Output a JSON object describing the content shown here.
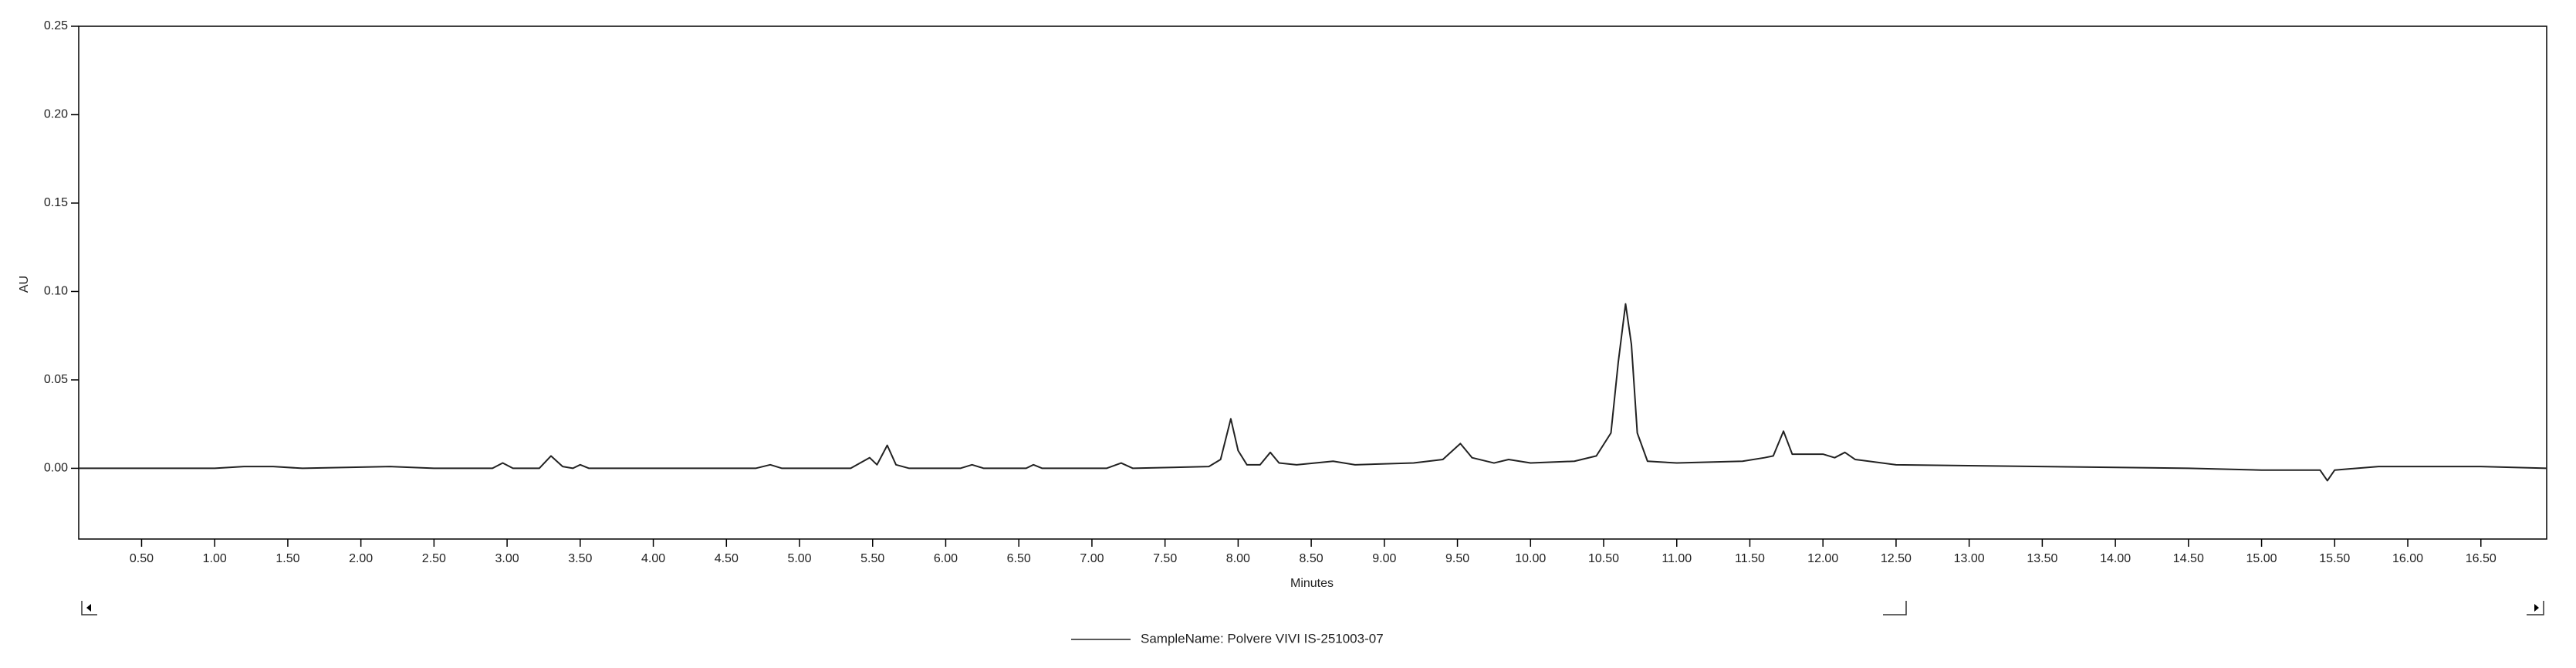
{
  "chart_data": {
    "type": "line",
    "x_label": "Minutes",
    "y_label": "AU",
    "xlim": [
      0.07,
      16.95
    ],
    "ylim": [
      -0.04,
      0.25
    ],
    "xticks": [
      {
        "value": 0.5,
        "label": "0.50"
      },
      {
        "value": 1.0,
        "label": "1.00"
      },
      {
        "value": 1.5,
        "label": "1.50"
      },
      {
        "value": 2.0,
        "label": "2.00"
      },
      {
        "value": 2.5,
        "label": "2.50"
      },
      {
        "value": 3.0,
        "label": "3.00"
      },
      {
        "value": 3.5,
        "label": "3.50"
      },
      {
        "value": 4.0,
        "label": "4.00"
      },
      {
        "value": 4.5,
        "label": "4.50"
      },
      {
        "value": 5.0,
        "label": "5.00"
      },
      {
        "value": 5.5,
        "label": "5.50"
      },
      {
        "value": 6.0,
        "label": "6.00"
      },
      {
        "value": 6.5,
        "label": "6.50"
      },
      {
        "value": 7.0,
        "label": "7.00"
      },
      {
        "value": 7.5,
        "label": "7.50"
      },
      {
        "value": 8.0,
        "label": "8.00"
      },
      {
        "value": 8.5,
        "label": "8.50"
      },
      {
        "value": 9.0,
        "label": "9.00"
      },
      {
        "value": 9.5,
        "label": "9.50"
      },
      {
        "value": 10.0,
        "label": "10.00"
      },
      {
        "value": 10.5,
        "label": "10.50"
      },
      {
        "value": 11.0,
        "label": "11.00"
      },
      {
        "value": 11.5,
        "label": "11.50"
      },
      {
        "value": 12.0,
        "label": "12.00"
      },
      {
        "value": 12.5,
        "label": "12.50"
      },
      {
        "value": 13.0,
        "label": "13.00"
      },
      {
        "value": 13.5,
        "label": "13.50"
      },
      {
        "value": 14.0,
        "label": "14.00"
      },
      {
        "value": 14.5,
        "label": "14.50"
      },
      {
        "value": 15.0,
        "label": "15.00"
      },
      {
        "value": 15.5,
        "label": "15.50"
      },
      {
        "value": 16.0,
        "label": "16.00"
      },
      {
        "value": 16.5,
        "label": "16.50"
      }
    ],
    "yticks": [
      {
        "value": 0.0,
        "label": "0.00"
      },
      {
        "value": 0.05,
        "label": "0.05"
      },
      {
        "value": 0.1,
        "label": "0.10"
      },
      {
        "value": 0.15,
        "label": "0.15"
      },
      {
        "value": 0.2,
        "label": "0.20"
      },
      {
        "value": 0.25,
        "label": "0.25"
      }
    ],
    "x": [
      0.07,
      1.0,
      1.2,
      1.4,
      1.6,
      2.2,
      2.5,
      2.9,
      2.97,
      3.04,
      3.22,
      3.3,
      3.38,
      3.45,
      3.5,
      3.56,
      4.7,
      4.8,
      4.88,
      5.35,
      5.48,
      5.53,
      5.6,
      5.66,
      5.75,
      6.1,
      6.18,
      6.26,
      6.55,
      6.6,
      6.66,
      7.1,
      7.2,
      7.28,
      7.8,
      7.88,
      7.95,
      8.0,
      8.06,
      8.15,
      8.22,
      8.28,
      8.4,
      8.65,
      8.8,
      9.2,
      9.4,
      9.52,
      9.6,
      9.75,
      9.85,
      10.0,
      10.3,
      10.45,
      10.55,
      10.6,
      10.65,
      10.69,
      10.73,
      10.8,
      11.0,
      11.45,
      11.6,
      11.66,
      11.73,
      11.79,
      12.0,
      12.08,
      12.15,
      12.22,
      12.5,
      13.5,
      14.5,
      15.0,
      15.4,
      15.45,
      15.5,
      15.8,
      16.5,
      16.95
    ],
    "series": [
      {
        "name": "SampleName: Polvere VIVI IS-251003-07",
        "color": "#222222",
        "values": [
          0,
          0,
          0.001,
          0.001,
          0,
          0.001,
          0,
          0,
          0.003,
          0,
          0,
          0.007,
          0.001,
          0,
          0.002,
          0,
          0,
          0.002,
          0,
          0,
          0.006,
          0.002,
          0.013,
          0.002,
          0,
          0,
          0.002,
          0,
          0,
          0.002,
          0,
          0,
          0.003,
          0,
          0.001,
          0.005,
          0.028,
          0.01,
          0.002,
          0.002,
          0.009,
          0.003,
          0.002,
          0.004,
          0.002,
          0.003,
          0.005,
          0.014,
          0.006,
          0.003,
          0.005,
          0.003,
          0.004,
          0.007,
          0.02,
          0.06,
          0.093,
          0.07,
          0.02,
          0.004,
          0.003,
          0.004,
          0.006,
          0.007,
          0.021,
          0.008,
          0.008,
          0.006,
          0.009,
          0.005,
          0.002,
          0.001,
          0,
          -0.001,
          -0.001,
          -0.007,
          -0.001,
          0.001,
          0.001,
          0
        ]
      }
    ]
  }
}
